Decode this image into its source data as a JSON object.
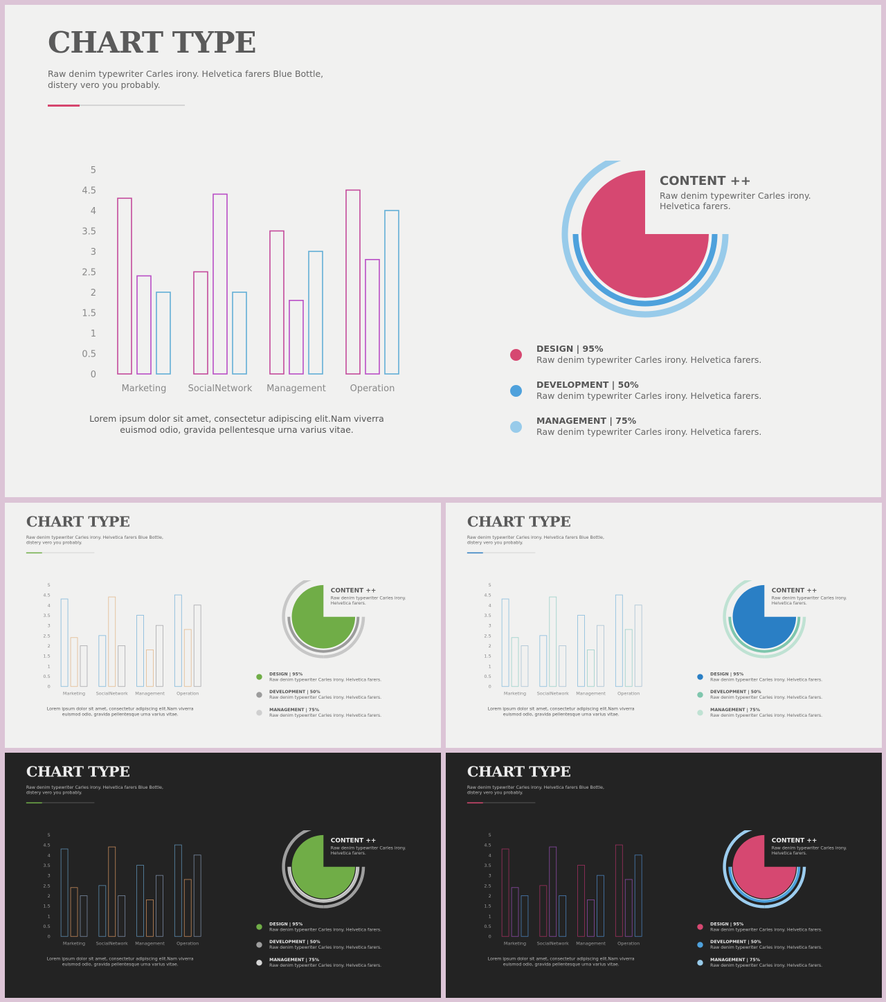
{
  "slides": [
    {
      "theme": "light",
      "accent": "#d6476f",
      "bar_colors": [
        "#c44a9c",
        "#b94ec6",
        "#61aed6"
      ],
      "radial": {
        "outer": "#98cbea",
        "middle": "#4ea1dc",
        "pie": "#d64871"
      },
      "legend_colors": [
        "#d64871",
        "#4ea1dc",
        "#98cbea"
      ]
    },
    {
      "theme": "light",
      "accent": "#6fae47",
      "bar_colors": [
        "#7fb6da",
        "#e3b98e",
        "#a7a7ab"
      ],
      "radial": {
        "outer": "#c7c7c7",
        "middle": "#9c9c9c",
        "pie": "#70ad47"
      },
      "legend_colors": [
        "#70ad47",
        "#9c9c9c",
        "#cfcfcf"
      ]
    },
    {
      "theme": "light",
      "accent": "#2e7ec2",
      "bar_colors": [
        "#86bbdc",
        "#9ad0c9",
        "#a7c1d2"
      ],
      "radial": {
        "outer": "#bfe2d3",
        "middle": "#7fc6ad",
        "pie": "#2a7fc5"
      },
      "legend_colors": [
        "#2a7fc5",
        "#7fc6ad",
        "#bfe2d3"
      ]
    },
    {
      "theme": "dark",
      "accent": "#6fae47",
      "bar_colors": [
        "#5d8db0",
        "#c58a5a",
        "#7a8aa3"
      ],
      "radial": {
        "outer": "#9e9e9e",
        "middle": "#bdbdbd",
        "pie": "#70ad47"
      },
      "legend_colors": [
        "#70ad47",
        "#9e9e9e",
        "#d6d6d6"
      ]
    },
    {
      "theme": "dark",
      "accent": "#d6476f",
      "bar_colors": [
        "#a1305f",
        "#8c4aa6",
        "#4a7fb8"
      ],
      "radial": {
        "outer": "#9ccdef",
        "middle": "#4ea1dc",
        "pie": "#d64871"
      },
      "legend_colors": [
        "#d64871",
        "#4ea1dc",
        "#98cbea"
      ]
    }
  ],
  "title": "CHART TYPE",
  "subtitle": "Raw denim typewriter Carles irony. Helvetica farers Blue Bottle, distery vero you probably.",
  "caption": "Lorem ipsum dolor sit amet, consectetur adipiscing elit.Nam viverra euismod odio, gravida pellentesque urna varius vitae.",
  "content": {
    "heading": "CONTENT ++",
    "text": "Raw denim typewriter Carles irony. Helvetica farers."
  },
  "legend": [
    {
      "label": "DESIGN | 95%",
      "desc": "Raw denim typewriter Carles irony. Helvetica farers."
    },
    {
      "label": "DEVELOPMENT | 50%",
      "desc": "Raw denim typewriter Carles irony. Helvetica farers."
    },
    {
      "label": "MANAGEMENT | 75%",
      "desc": "Raw denim typewriter Carles irony. Helvetica farers."
    }
  ],
  "chart_data": [
    {
      "type": "bar",
      "categories": [
        "Marketing",
        "SocialNetwork",
        "Management",
        "Operation"
      ],
      "series": [
        {
          "values": [
            4.3,
            2.5,
            3.5,
            4.5
          ]
        },
        {
          "values": [
            2.4,
            4.4,
            1.8,
            2.8
          ]
        },
        {
          "values": [
            2.0,
            2.0,
            3.0,
            4.0
          ]
        }
      ],
      "yticks": [
        "0",
        "0.5",
        "1",
        "1.5",
        "2",
        "2.5",
        "3",
        "3.5",
        "4",
        "4.5",
        "5"
      ],
      "ylim": [
        0,
        5
      ],
      "grid": false
    },
    {
      "type": "pie",
      "values": [
        95,
        50,
        75
      ],
      "labels": [
        "DESIGN | 95%",
        "DEVELOPMENT | 50%",
        "MANAGEMENT | 75%"
      ],
      "pie_fraction": 0.75,
      "ring_fraction": 0.75
    }
  ]
}
